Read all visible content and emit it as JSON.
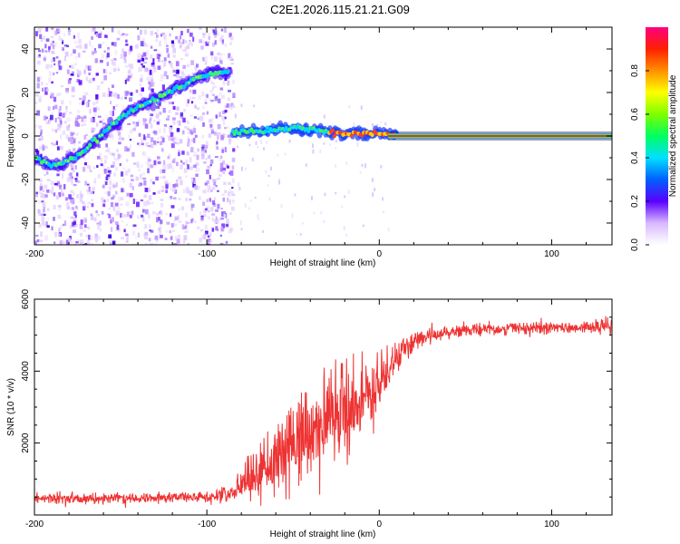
{
  "title": "C2E1.2026.115.21.21.G09",
  "chart_data": [
    {
      "type": "heatmap",
      "xlabel": "Height of straight line (km)",
      "ylabel": "Frequency (Hz)",
      "xlim": [
        -200,
        135
      ],
      "ylim": [
        -50,
        50
      ],
      "xticks": [
        -200,
        -100,
        0,
        100
      ],
      "yticks": [
        -40,
        -20,
        0,
        20,
        40
      ],
      "ridge": {
        "x": [
          -200,
          -195,
          -190,
          -185,
          -180,
          -175,
          -170,
          -165,
          -160,
          -155,
          -150,
          -145,
          -140,
          -135,
          -130,
          -125,
          -120,
          -115,
          -110,
          -105,
          -100,
          -95,
          -90,
          -87
        ],
        "y": [
          -10,
          -12,
          -13,
          -13,
          -11,
          -9,
          -6,
          -2,
          1,
          5,
          8,
          11,
          13,
          15,
          17,
          19,
          21,
          23,
          25,
          27,
          28,
          29,
          29,
          29
        ]
      },
      "band": {
        "x": [
          -85,
          -80,
          -70,
          -60,
          -50,
          -40,
          -30,
          -20,
          -10,
          0,
          10,
          20,
          40,
          60,
          80,
          100,
          120,
          135
        ],
        "y": [
          2,
          2,
          2,
          3,
          4,
          3,
          2,
          1,
          1,
          1,
          0.5,
          0,
          0,
          0,
          0,
          0,
          0,
          0
        ]
      },
      "colorbar": {
        "label": "Normalized spectral amplitude",
        "range": [
          0.0,
          1.0
        ],
        "ticks": [
          "0.0",
          "0.2",
          "0.4",
          "0.6",
          "0.8"
        ]
      }
    },
    {
      "type": "line",
      "xlabel": "Height of straight line (km)",
      "ylabel": "SNR (10 * v/v)",
      "xlim": [
        -200,
        135
      ],
      "ylim": [
        0,
        6000
      ],
      "xticks": [
        -200,
        -100,
        0,
        100
      ],
      "yticks": [
        2000,
        4000,
        6000
      ],
      "series": [
        {
          "name": "SNR",
          "color": "#ee3333",
          "profile_x": [
            -200,
            -150,
            -100,
            -85,
            -75,
            -60,
            -45,
            -30,
            -20,
            -10,
            0,
            10,
            20,
            30,
            50,
            80,
            110,
            135
          ],
          "profile_mean": [
            450,
            470,
            500,
            600,
            1000,
            1500,
            2000,
            2500,
            2800,
            3100,
            3600,
            4300,
            4800,
            5000,
            5150,
            5200,
            5200,
            5250
          ],
          "profile_noise": [
            120,
            120,
            130,
            200,
            500,
            800,
            1000,
            1100,
            1100,
            1000,
            700,
            350,
            200,
            180,
            150,
            150,
            150,
            180
          ]
        }
      ]
    }
  ],
  "colors": {
    "spectrogram_ridge": "#3af07a",
    "spectrogram_line": "#e0302a",
    "snr_line": "#ee3333"
  }
}
